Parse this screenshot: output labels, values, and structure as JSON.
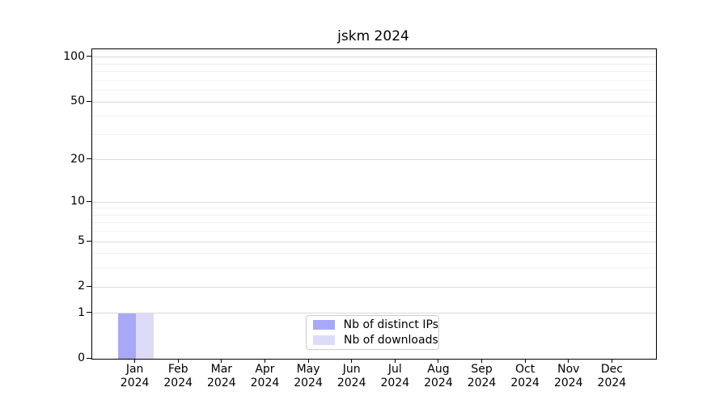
{
  "chart_data": {
    "type": "bar",
    "title": "jskm 2024",
    "xlabel": "",
    "ylabel": "",
    "categories": [
      "Jan 2024",
      "Feb 2024",
      "Mar 2024",
      "Apr 2024",
      "May 2024",
      "Jun 2024",
      "Jul 2024",
      "Aug 2024",
      "Sep 2024",
      "Oct 2024",
      "Nov 2024",
      "Dec 2024"
    ],
    "series": [
      {
        "name": "Nb of distinct IPs",
        "color": "#a8a8f7",
        "values": [
          1,
          0,
          0,
          0,
          0,
          0,
          0,
          0,
          0,
          0,
          0,
          0
        ]
      },
      {
        "name": "Nb of downloads",
        "color": "#dcdcf8",
        "values": [
          1,
          0,
          0,
          0,
          0,
          0,
          0,
          0,
          0,
          0,
          0,
          0
        ]
      }
    ],
    "scale": "log1p",
    "ylim": [
      0,
      113
    ],
    "y_ticks": [
      0,
      1,
      2,
      5,
      10,
      20,
      50,
      100
    ],
    "y_minor_ticks": [
      3,
      4,
      6,
      7,
      8,
      9,
      30,
      40,
      60,
      70,
      80,
      90,
      110
    ],
    "grid": "horizontal",
    "legend_position": "bottom-center"
  },
  "colors": {
    "frame": "#000000",
    "grid_major": "#d9d9d9",
    "grid_minor": "#f1f1f1",
    "legend_border": "#cccccc",
    "background": "#ffffff"
  }
}
